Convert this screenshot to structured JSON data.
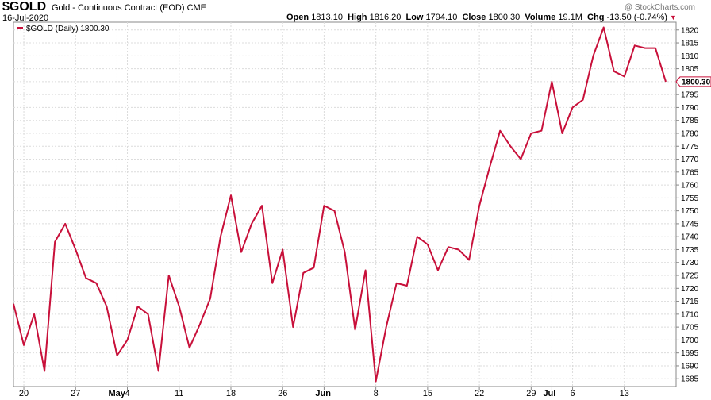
{
  "header": {
    "symbol": "$GOLD",
    "name": "Gold - Continuous Contract (EOD)",
    "exchange": "CME",
    "date": "16-Jul-2020",
    "watermark": "@ StockCharts.com",
    "open_label": "Open",
    "open": "1813.10",
    "high_label": "High",
    "high": "1816.20",
    "low_label": "Low",
    "low": "1794.10",
    "close_label": "Close",
    "close": "1800.30",
    "volume_label": "Volume",
    "volume": "19.1M",
    "chg_label": "Chg",
    "chg": "-13.50 (-0.74%)",
    "chg_arrow": "▼"
  },
  "colors": {
    "line": "#c8103a",
    "grid": "#dcdcdc",
    "axis": "#888888"
  },
  "chart_data": {
    "type": "line",
    "legend": "$GOLD (Daily) 1800.30",
    "legend_position": "top-left",
    "last_value_label": "1800.30",
    "grid": true,
    "ylim": [
      1682,
      1823
    ],
    "yticks": [
      1685,
      1690,
      1695,
      1700,
      1705,
      1710,
      1715,
      1720,
      1725,
      1730,
      1735,
      1740,
      1745,
      1750,
      1755,
      1760,
      1765,
      1770,
      1775,
      1780,
      1785,
      1790,
      1795,
      1800,
      1805,
      1810,
      1815,
      1820
    ],
    "xticks": [
      {
        "label": "20",
        "index": 1
      },
      {
        "label": "27",
        "index": 6
      },
      {
        "label": "May",
        "index": 10,
        "bold": true
      },
      {
        "label": "4",
        "index": 11
      },
      {
        "label": "11",
        "index": 16
      },
      {
        "label": "18",
        "index": 21
      },
      {
        "label": "26",
        "index": 26
      },
      {
        "label": "Jun",
        "index": 30,
        "bold": true
      },
      {
        "label": "8",
        "index": 35
      },
      {
        "label": "15",
        "index": 40
      },
      {
        "label": "22",
        "index": 45
      },
      {
        "label": "29",
        "index": 50
      },
      {
        "label": "Jul",
        "index": 52,
        "bold": true
      },
      {
        "label": "6",
        "index": 54
      },
      {
        "label": "13",
        "index": 59
      }
    ],
    "series": [
      {
        "values": [
          1714,
          1698,
          1710,
          1688,
          1738,
          1745,
          1735,
          1724,
          1722,
          1713,
          1694,
          1700,
          1713,
          1710,
          1688,
          1725,
          1713,
          1697,
          1706,
          1716,
          1740,
          1756,
          1734,
          1745,
          1752,
          1722,
          1735,
          1705,
          1726,
          1728,
          1752,
          1750,
          1734,
          1704,
          1727,
          1684,
          1705,
          1722,
          1721,
          1740,
          1737,
          1727,
          1736,
          1735,
          1731,
          1752,
          1767,
          1781,
          1775,
          1770,
          1780,
          1781,
          1800,
          1780,
          1790,
          1793,
          1810,
          1821,
          1804,
          1802,
          1814,
          1813,
          1813,
          1800
        ]
      }
    ]
  }
}
